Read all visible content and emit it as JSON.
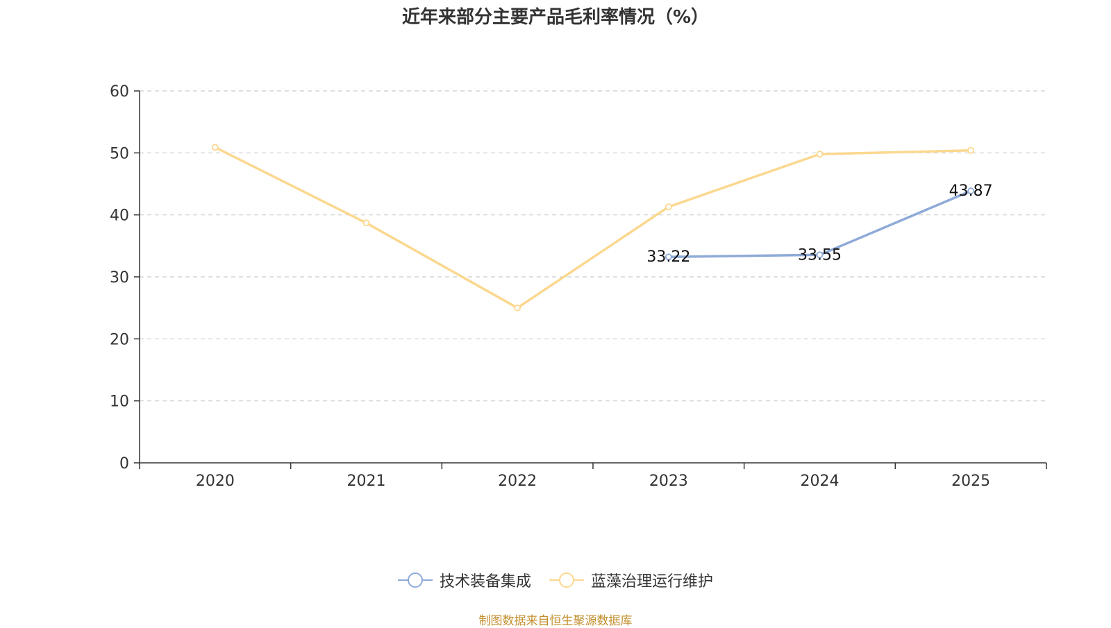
{
  "chart_data": {
    "type": "line",
    "title": "近年来部分主要产品毛利率情况（%）",
    "xlabel": "",
    "ylabel": "",
    "categories": [
      "2020",
      "2021",
      "2022",
      "2023",
      "2024",
      "2025"
    ],
    "ylim": [
      0,
      60
    ],
    "yticks": [
      0,
      10,
      20,
      30,
      40,
      50,
      60
    ],
    "grid": true,
    "legend_position": "bottom",
    "series": [
      {
        "name": "技术装备集成",
        "color": "#8eaad8",
        "values": [
          null,
          null,
          null,
          33.22,
          33.55,
          43.87
        ],
        "labels": [
          "",
          "",
          "",
          "33.22",
          "33.55",
          "43.87"
        ]
      },
      {
        "name": "蓝藻治理运行维护",
        "color": "#fbd88f",
        "values": [
          50.9,
          38.7,
          25.0,
          41.3,
          49.8,
          50.4
        ],
        "labels": [
          "",
          "",
          "",
          "",
          "",
          ""
        ]
      }
    ]
  },
  "source_note": "制图数据来自恒生聚源数据库"
}
